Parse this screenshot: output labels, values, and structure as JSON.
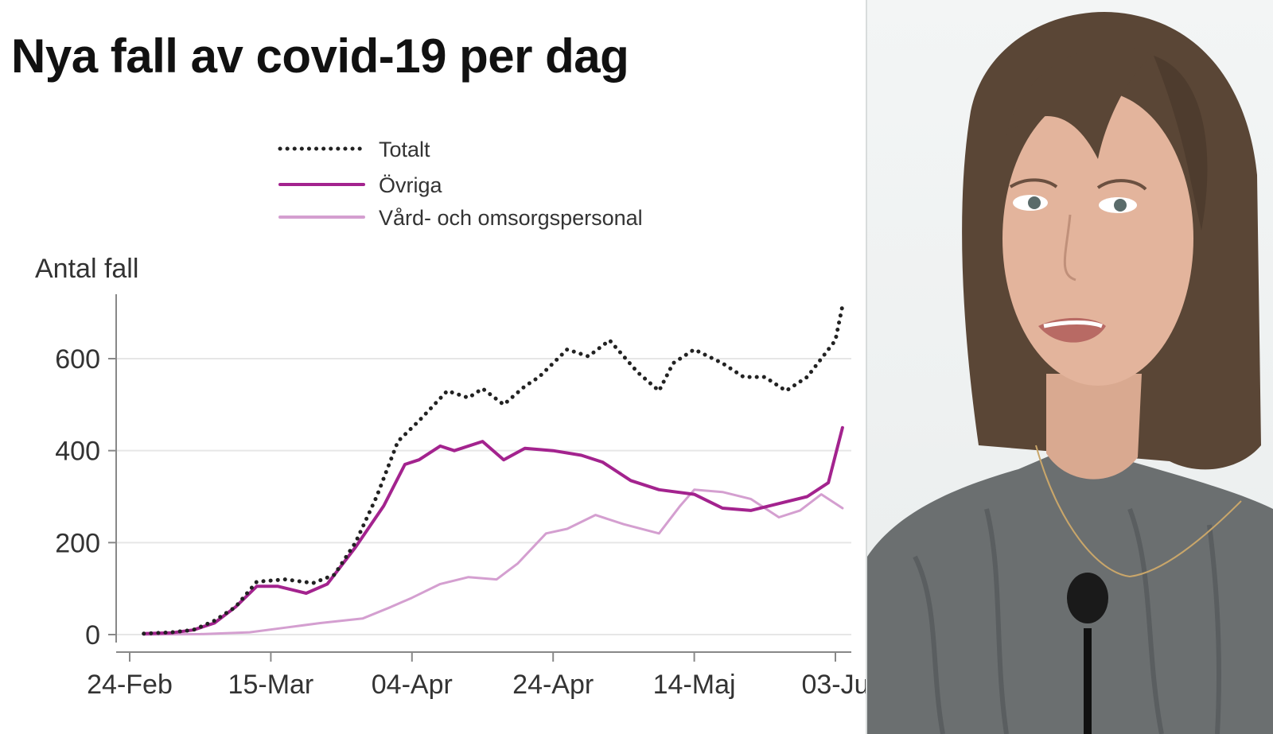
{
  "colors": {
    "totalt": "#222222",
    "ovriga": "#a3238e",
    "vard": "#d49fd0",
    "grid": "#e6e6e6",
    "axis": "#888888",
    "text": "#333333"
  },
  "chart_data": {
    "type": "line",
    "title": "Nya fall av covid-19 per dag",
    "ylabel": "Antal fall",
    "xlabel": "",
    "ylim": [
      0,
      760
    ],
    "yticks": [
      0,
      200,
      400,
      600
    ],
    "x_start": "2020-02-24",
    "x_end": "2020-06-04",
    "xticks": [
      {
        "date": "2020-02-24",
        "label": "24-Feb"
      },
      {
        "date": "2020-03-15",
        "label": "15-Mar"
      },
      {
        "date": "2020-04-04",
        "label": "04-Apr"
      },
      {
        "date": "2020-04-24",
        "label": "24-Apr"
      },
      {
        "date": "2020-05-14",
        "label": "14-Maj"
      },
      {
        "date": "2020-06-03",
        "label": "03-Ju"
      }
    ],
    "grid": true,
    "legend_position": "top",
    "series": [
      {
        "name": "Totalt",
        "style": "dotted",
        "color": "#222222",
        "points": [
          [
            "2020-02-26",
            2
          ],
          [
            "2020-03-01",
            5
          ],
          [
            "2020-03-04",
            10
          ],
          [
            "2020-03-07",
            30
          ],
          [
            "2020-03-10",
            60
          ],
          [
            "2020-03-13",
            115
          ],
          [
            "2020-03-17",
            120
          ],
          [
            "2020-03-21",
            112
          ],
          [
            "2020-03-24",
            130
          ],
          [
            "2020-03-27",
            200
          ],
          [
            "2020-03-30",
            300
          ],
          [
            "2020-04-02",
            420
          ],
          [
            "2020-04-05",
            465
          ],
          [
            "2020-04-09",
            530
          ],
          [
            "2020-04-12",
            515
          ],
          [
            "2020-04-14",
            535
          ],
          [
            "2020-04-17",
            500
          ],
          [
            "2020-04-20",
            540
          ],
          [
            "2020-04-22",
            560
          ],
          [
            "2020-04-26",
            620
          ],
          [
            "2020-04-29",
            605
          ],
          [
            "2020-05-02",
            640
          ],
          [
            "2020-05-06",
            570
          ],
          [
            "2020-05-09",
            530
          ],
          [
            "2020-05-11",
            590
          ],
          [
            "2020-05-14",
            620
          ],
          [
            "2020-05-18",
            590
          ],
          [
            "2020-05-21",
            560
          ],
          [
            "2020-05-24",
            560
          ],
          [
            "2020-05-27",
            530
          ],
          [
            "2020-05-30",
            560
          ],
          [
            "2020-06-01",
            600
          ],
          [
            "2020-06-03",
            640
          ],
          [
            "2020-06-04",
            715
          ]
        ]
      },
      {
        "name": "Övriga",
        "style": "solid",
        "color": "#a3238e",
        "points": [
          [
            "2020-02-26",
            2
          ],
          [
            "2020-03-01",
            4
          ],
          [
            "2020-03-04",
            10
          ],
          [
            "2020-03-07",
            25
          ],
          [
            "2020-03-10",
            60
          ],
          [
            "2020-03-13",
            105
          ],
          [
            "2020-03-16",
            105
          ],
          [
            "2020-03-20",
            90
          ],
          [
            "2020-03-23",
            110
          ],
          [
            "2020-03-27",
            190
          ],
          [
            "2020-03-31",
            280
          ],
          [
            "2020-04-03",
            370
          ],
          [
            "2020-04-05",
            380
          ],
          [
            "2020-04-08",
            410
          ],
          [
            "2020-04-10",
            400
          ],
          [
            "2020-04-14",
            420
          ],
          [
            "2020-04-17",
            380
          ],
          [
            "2020-04-20",
            405
          ],
          [
            "2020-04-24",
            400
          ],
          [
            "2020-04-28",
            390
          ],
          [
            "2020-05-01",
            375
          ],
          [
            "2020-05-05",
            335
          ],
          [
            "2020-05-09",
            315
          ],
          [
            "2020-05-14",
            305
          ],
          [
            "2020-05-18",
            275
          ],
          [
            "2020-05-22",
            270
          ],
          [
            "2020-05-26",
            285
          ],
          [
            "2020-05-30",
            300
          ],
          [
            "2020-06-02",
            330
          ],
          [
            "2020-06-04",
            450
          ]
        ]
      },
      {
        "name": "Vård- och omsorgspersonal",
        "style": "solid",
        "color": "#d49fd0",
        "points": [
          [
            "2020-02-26",
            0
          ],
          [
            "2020-03-05",
            1
          ],
          [
            "2020-03-12",
            5
          ],
          [
            "2020-03-17",
            15
          ],
          [
            "2020-03-22",
            25
          ],
          [
            "2020-03-28",
            35
          ],
          [
            "2020-04-01",
            60
          ],
          [
            "2020-04-04",
            80
          ],
          [
            "2020-04-08",
            110
          ],
          [
            "2020-04-12",
            125
          ],
          [
            "2020-04-16",
            120
          ],
          [
            "2020-04-19",
            155
          ],
          [
            "2020-04-23",
            220
          ],
          [
            "2020-04-26",
            230
          ],
          [
            "2020-04-30",
            260
          ],
          [
            "2020-05-04",
            240
          ],
          [
            "2020-05-09",
            220
          ],
          [
            "2020-05-12",
            280
          ],
          [
            "2020-05-14",
            315
          ],
          [
            "2020-05-18",
            310
          ],
          [
            "2020-05-22",
            295
          ],
          [
            "2020-05-26",
            255
          ],
          [
            "2020-05-29",
            270
          ],
          [
            "2020-06-01",
            305
          ],
          [
            "2020-06-04",
            275
          ]
        ]
      }
    ]
  }
}
